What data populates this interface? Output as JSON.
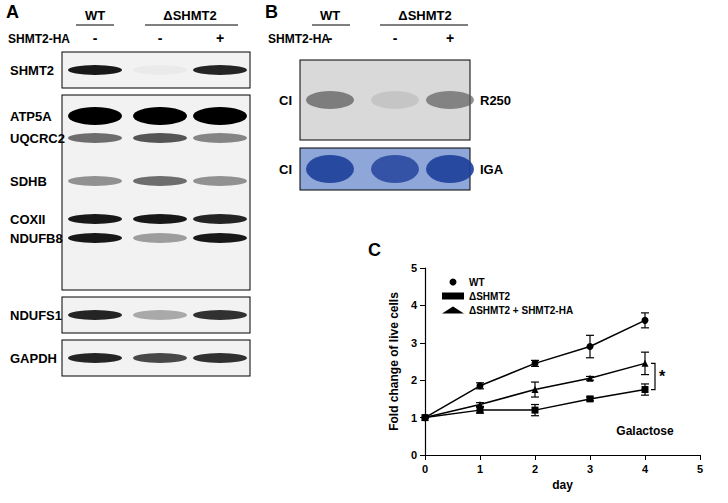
{
  "figure": {
    "panels": [
      {
        "label": "A",
        "columns": [
          "WT",
          "ΔSHMT2"
        ],
        "row_label": "SHMT2-HA",
        "lanes": [
          "-",
          "-",
          "+"
        ],
        "blots": [
          {
            "bands": [
              "SHMT2"
            ]
          },
          {
            "bands": [
              "ATP5A",
              "UQCRC2",
              "SDHB",
              "COXII",
              "NDUFB8"
            ]
          },
          {
            "bands": [
              "NDUFS1"
            ]
          },
          {
            "bands": [
              "GAPDH"
            ]
          }
        ]
      },
      {
        "label": "B",
        "columns": [
          "WT",
          "ΔSHMT2"
        ],
        "row_label": "SHMT2-HA",
        "lanes": [
          "-",
          "-",
          "+"
        ],
        "gels": [
          {
            "left": "CI",
            "right": "R250"
          },
          {
            "left": "CI",
            "right": "IGA"
          }
        ]
      },
      {
        "label": "C"
      }
    ]
  },
  "chart_data": {
    "type": "line",
    "x_label": "day",
    "y_label": "Fold change of live cells",
    "x": [
      0,
      1,
      2,
      3,
      4
    ],
    "series": [
      {
        "name": "WT",
        "color": "#000000",
        "marker": "circle",
        "values": [
          1,
          1.85,
          2.45,
          2.9,
          3.6
        ],
        "errors": [
          0,
          0.08,
          0.08,
          0.3,
          0.2
        ]
      },
      {
        "name": "ΔSHMT2",
        "color": "#000000",
        "marker": "square",
        "values": [
          1,
          1.2,
          1.2,
          1.5,
          1.75
        ],
        "errors": [
          0,
          0.08,
          0.15,
          0.05,
          0.15
        ]
      },
      {
        "name": "ΔSHMT2 + SHMT2-HA",
        "color": "#000000",
        "marker": "triangle",
        "values": [
          1,
          1.35,
          1.75,
          2.05,
          2.45
        ],
        "errors": [
          0,
          0.05,
          0.2,
          0.05,
          0.3
        ]
      }
    ],
    "xlim": [
      0,
      5
    ],
    "xticks": [
      0,
      1,
      2,
      3,
      4,
      5
    ],
    "ylim": [
      0,
      5
    ],
    "yticks": [
      0,
      1,
      2,
      3,
      4,
      5
    ],
    "grid": false,
    "legend": "top-left",
    "annotations": [
      {
        "text": "Galactose"
      },
      {
        "text": "*",
        "between": [
          "ΔSHMT2 + SHMT2-HA",
          "ΔSHMT2"
        ]
      }
    ]
  }
}
